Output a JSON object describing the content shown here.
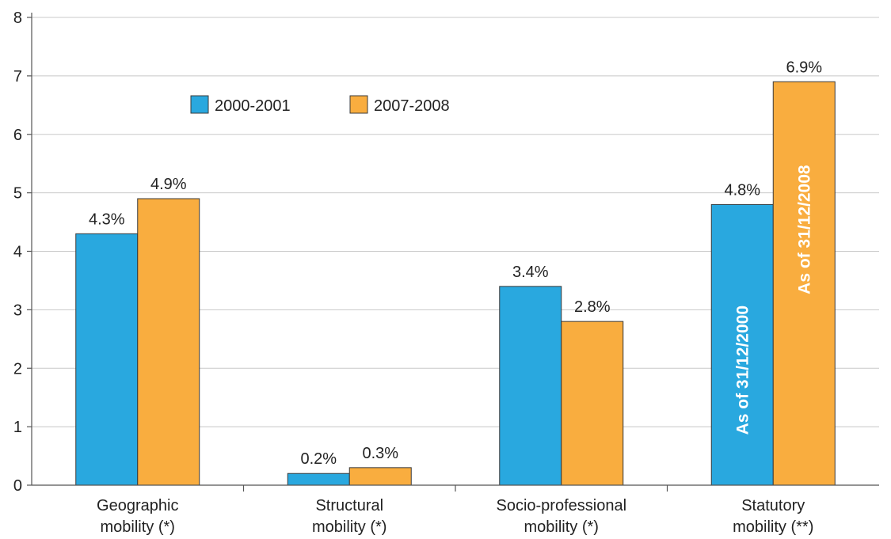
{
  "chart_data": {
    "type": "bar",
    "categories": [
      [
        "Geographic",
        "mobility (*)"
      ],
      [
        "Structural",
        "mobility (*)"
      ],
      [
        "Socio-professional",
        "mobility (*)"
      ],
      [
        "Statutory",
        "mobility (**)"
      ]
    ],
    "series": [
      {
        "name": "2000-2001",
        "color": "#29a8df",
        "values": [
          4.3,
          0.2,
          3.4,
          4.8
        ],
        "labels": [
          "4.3%",
          "0.2%",
          "3.4%",
          "4.8%"
        ]
      },
      {
        "name": "2007-2008",
        "color": "#f9ad3f",
        "values": [
          4.9,
          0.3,
          2.8,
          6.9
        ],
        "labels": [
          "4.9%",
          "0.3%",
          "2.8%",
          "6.9%"
        ]
      }
    ],
    "bar_annotations": [
      {
        "category": 3,
        "series": 0,
        "text": "As of 31/12/2000"
      },
      {
        "category": 3,
        "series": 1,
        "text": "As of 31/12/2008"
      }
    ],
    "yticks": [
      0,
      1,
      2,
      3,
      4,
      5,
      6,
      7,
      8
    ],
    "ylim": [
      0,
      8
    ],
    "grid": true,
    "legend_position": "top-left",
    "title": "",
    "xlabel": "",
    "ylabel": ""
  }
}
